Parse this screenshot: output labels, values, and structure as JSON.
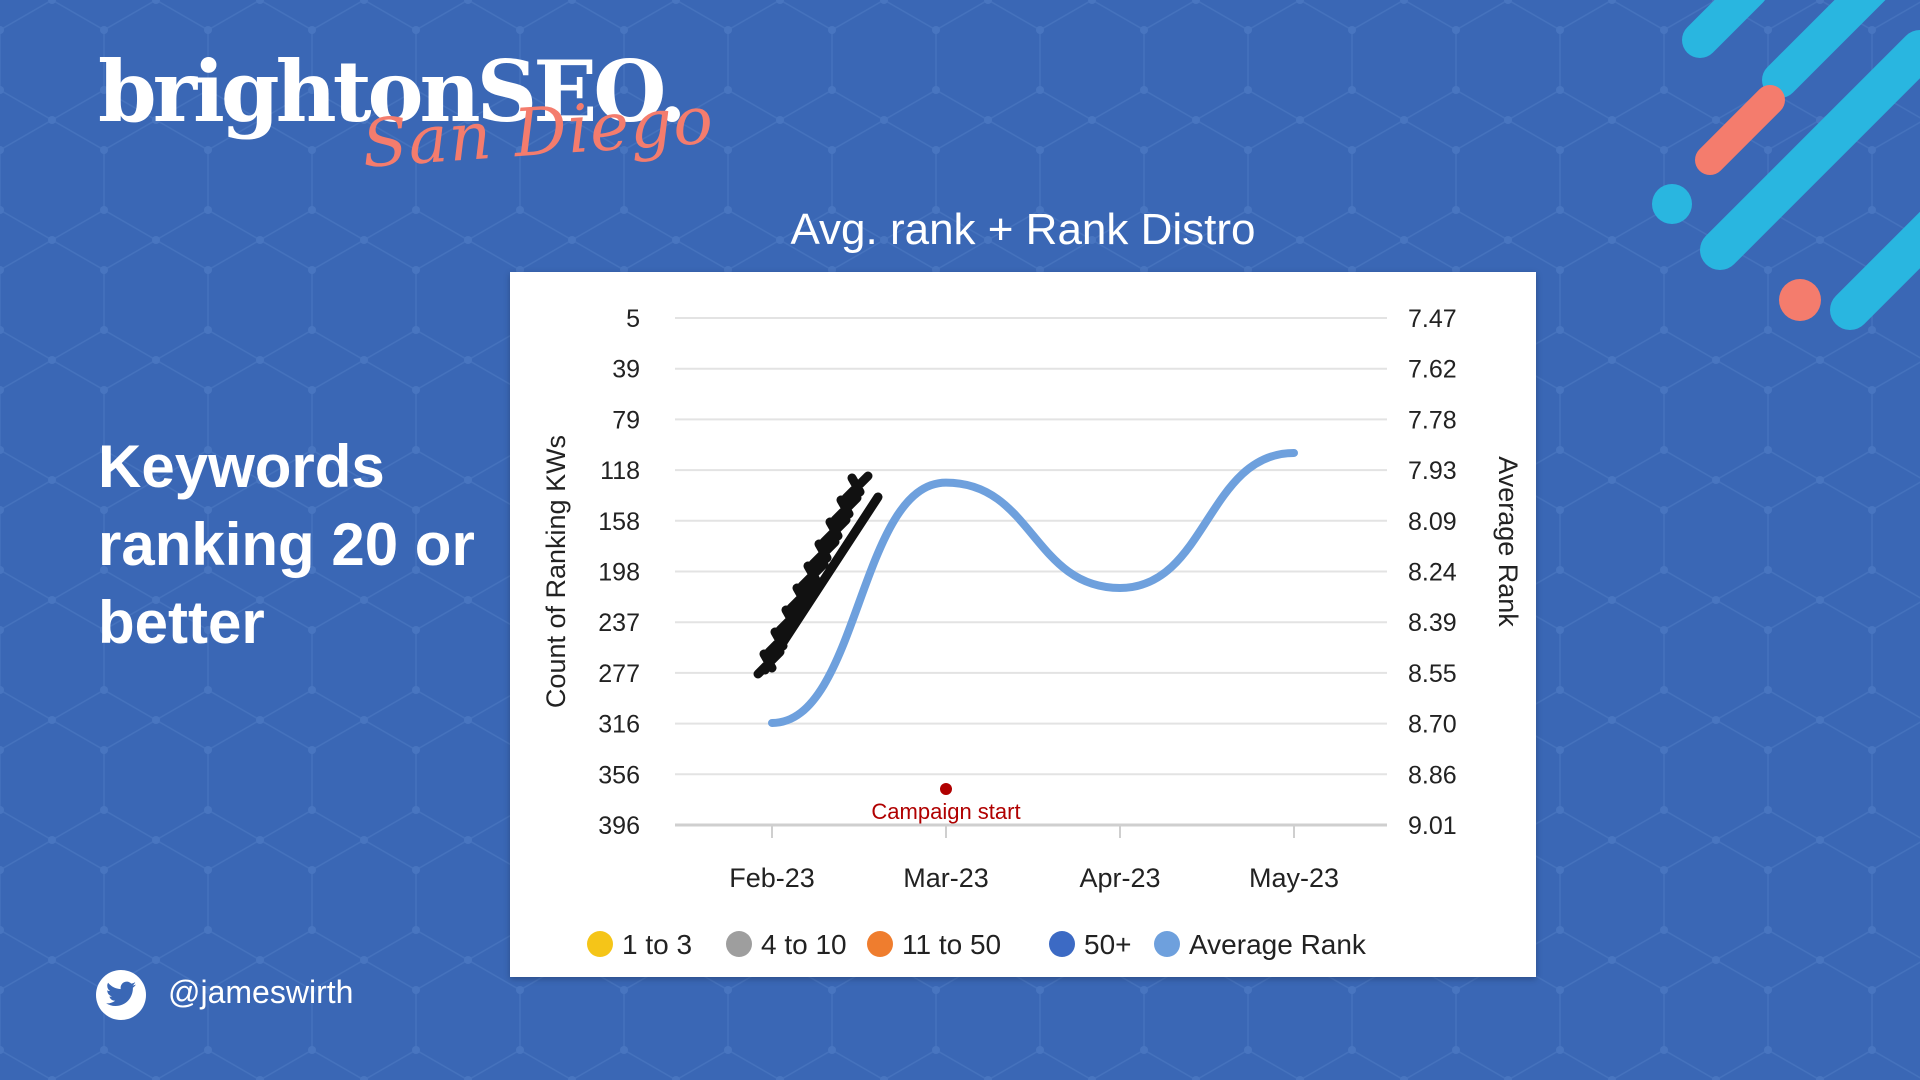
{
  "logo": {
    "main": "brightonSEO.",
    "sub": "San Diego"
  },
  "heading": "Keywords ranking 20 or better",
  "twitter_handle": "@jameswirth",
  "colors": {
    "background": "#3a67b5",
    "logo_accent": "#f47c6d",
    "deco_cyan": "#29b6e0",
    "deco_coral": "#f47c6d",
    "annotation": "#b00000"
  },
  "icons": [
    "twitter-icon"
  ],
  "chart_data": {
    "type": "line",
    "title": "Avg. rank + Rank Distro",
    "ylabel_left": "Count of Ranking KWs",
    "ylabel_right": "Average Rank",
    "y_left_ticks": [
      "5",
      "39",
      "79",
      "118",
      "158",
      "198",
      "237",
      "277",
      "316",
      "356",
      "396"
    ],
    "y_right_ticks": [
      "7.47",
      "7.62",
      "7.78",
      "7.93",
      "8.09",
      "8.24",
      "8.39",
      "8.55",
      "8.70",
      "8.86",
      "9.01"
    ],
    "y_right_range": [
      7.47,
      9.01
    ],
    "y_right_inverted": true,
    "x_ticks": [
      "Feb-23",
      "Mar-23",
      "Apr-23",
      "May-23"
    ],
    "grid": true,
    "legend_position": "bottom",
    "legend": [
      {
        "label": "1 to 3",
        "color": "#f5c518"
      },
      {
        "label": "4 to 10",
        "color": "#9e9e9e"
      },
      {
        "label": "11 to 50",
        "color": "#ef7d2e"
      },
      {
        "label": "50+",
        "color": "#3c6ac4"
      },
      {
        "label": "Average Rank",
        "color": "#6ea0dd"
      }
    ],
    "series": [
      {
        "name": "Average Rank",
        "color": "#6ea0dd",
        "x_month_index": [
          0,
          1,
          2,
          3
        ],
        "values": [
          8.7,
          7.97,
          8.29,
          7.88
        ]
      }
    ],
    "annotations": [
      {
        "text": "Campaign start",
        "x": "Mar-23",
        "color": "#b00000"
      }
    ]
  }
}
